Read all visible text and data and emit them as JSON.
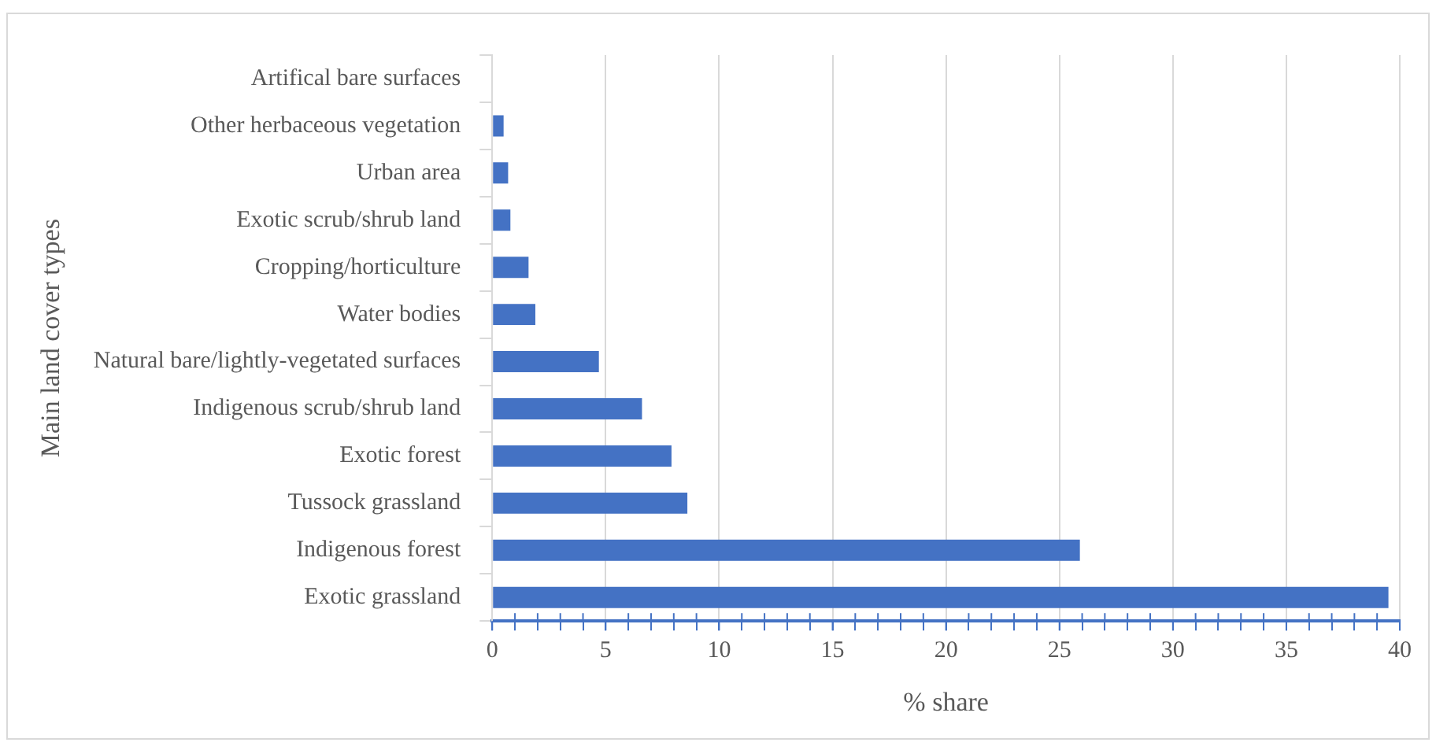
{
  "chart_data": {
    "type": "bar",
    "orientation": "horizontal",
    "xlabel": "% share",
    "ylabel": "Main land cover types",
    "categories": [
      "Artifical bare surfaces",
      "Other herbaceous vegetation",
      "Urban area",
      "Exotic scrub/shrub land",
      "Cropping/horticulture",
      "Water bodies",
      "Natural bare/lightly-vegetated surfaces",
      "Indigenous scrub/shrub land",
      "Exotic forest",
      "Tussock grassland",
      "Indigenous forest",
      "Exotic grassland"
    ],
    "values": [
      0,
      0.5,
      0.7,
      0.8,
      1.6,
      1.9,
      4.7,
      6.6,
      7.9,
      8.6,
      25.9,
      39.5
    ],
    "color": "#4472c4",
    "xlim": [
      0,
      40
    ],
    "xticks": [
      0,
      {
        "value": 1,
        "label": null
      },
      {
        "value": 2,
        "label": null
      },
      {
        "value": 3,
        "label": null
      },
      {
        "value": 4,
        "label": null
      },
      5,
      {
        "value": 6,
        "label": null
      },
      {
        "value": 7,
        "label": null
      },
      {
        "value": 8,
        "label": null
      },
      {
        "value": 9,
        "label": null
      },
      10,
      {
        "value": 11,
        "label": null
      },
      {
        "value": 12,
        "label": null
      },
      {
        "value": 13,
        "label": null
      },
      {
        "value": 14,
        "label": null
      },
      15,
      {
        "value": 16,
        "label": null
      },
      {
        "value": 17,
        "label": null
      },
      {
        "value": 18,
        "label": null
      },
      {
        "value": 19,
        "label": null
      },
      20,
      {
        "value": 21,
        "label": null
      },
      {
        "value": 22,
        "label": null
      },
      {
        "value": 23,
        "label": null
      },
      {
        "value": 24,
        "label": null
      },
      25,
      {
        "value": 26,
        "label": null
      },
      {
        "value": 27,
        "label": null
      },
      {
        "value": 28,
        "label": null
      },
      {
        "value": 29,
        "label": null
      },
      30,
      {
        "value": 31,
        "label": null
      },
      {
        "value": 32,
        "label": null
      },
      {
        "value": 33,
        "label": null
      },
      {
        "value": 34,
        "label": null
      },
      35,
      {
        "value": 36,
        "label": null
      },
      {
        "value": 37,
        "label": null
      },
      {
        "value": 38,
        "label": null
      },
      {
        "value": 39,
        "label": null
      },
      40
    ],
    "grid": "x"
  }
}
